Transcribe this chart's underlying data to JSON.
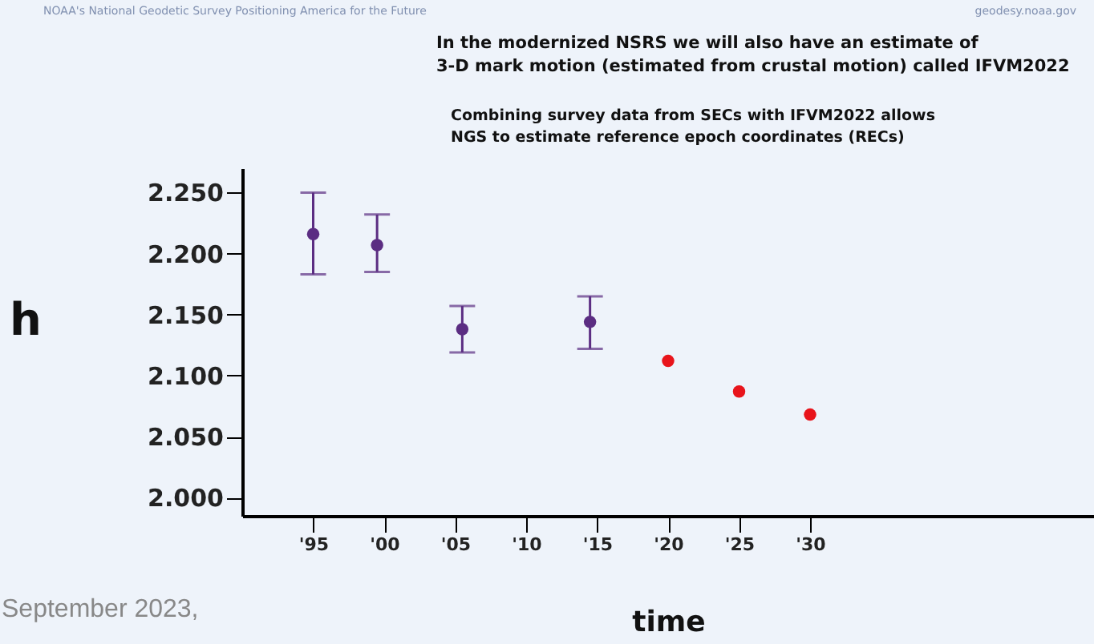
{
  "chart_data": {
    "type": "scatter",
    "title": "In the modernized NSRS we will also have an estimate of\n3-D mark motion (estimated from crustal motion) called IFVM2022",
    "xlabel": "time",
    "ylabel": "h",
    "annotations": [
      "NOAA's National Geodetic Survey Positioning America for the Future",
      "geodesy.noaa.gov",
      "Combining survey data from SECs with IFVM2022 allows\nNGS to estimate reference epoch coordinates (RECs)",
      "September 2023,"
    ],
    "series": [
      {
        "color": "#5b2d82",
        "x": [
          1995,
          1999.5,
          2005.5,
          2014.5
        ],
        "values": [
          2.216,
          2.207,
          2.138,
          2.144
        ],
        "errors": [
          [
            2.183,
            2.25
          ],
          [
            2.185,
            2.232
          ],
          [
            2.119,
            2.157
          ],
          [
            2.122,
            2.165
          ]
        ]
      },
      {
        "color": "#e8141b",
        "x": [
          2020,
          2025,
          2030
        ],
        "values": [
          2.112,
          2.087,
          2.068
        ]
      }
    ],
    "xlim": [
      1990,
      2050
    ],
    "ylim": [
      1.985,
      2.27
    ],
    "xticks": [
      {
        "value": 1995,
        "label": "'95"
      },
      {
        "value": 2000,
        "label": "'00"
      },
      {
        "value": 2005,
        "label": "'05"
      },
      {
        "value": 2010,
        "label": "'10"
      },
      {
        "value": 2015,
        "label": "'15"
      },
      {
        "value": 2020,
        "label": "'20"
      },
      {
        "value": 2025,
        "label": "'25"
      },
      {
        "value": 2030,
        "label": "'30"
      }
    ],
    "yticks": [
      {
        "value": 2.0,
        "label": "2.000"
      },
      {
        "value": 2.05,
        "label": "2.050"
      },
      {
        "value": 2.1,
        "label": "2.100"
      },
      {
        "value": 2.15,
        "label": "2.150"
      },
      {
        "value": 2.2,
        "label": "2.200"
      },
      {
        "value": 2.25,
        "label": "2.250"
      }
    ],
    "marker": "circle",
    "grid": false
  }
}
